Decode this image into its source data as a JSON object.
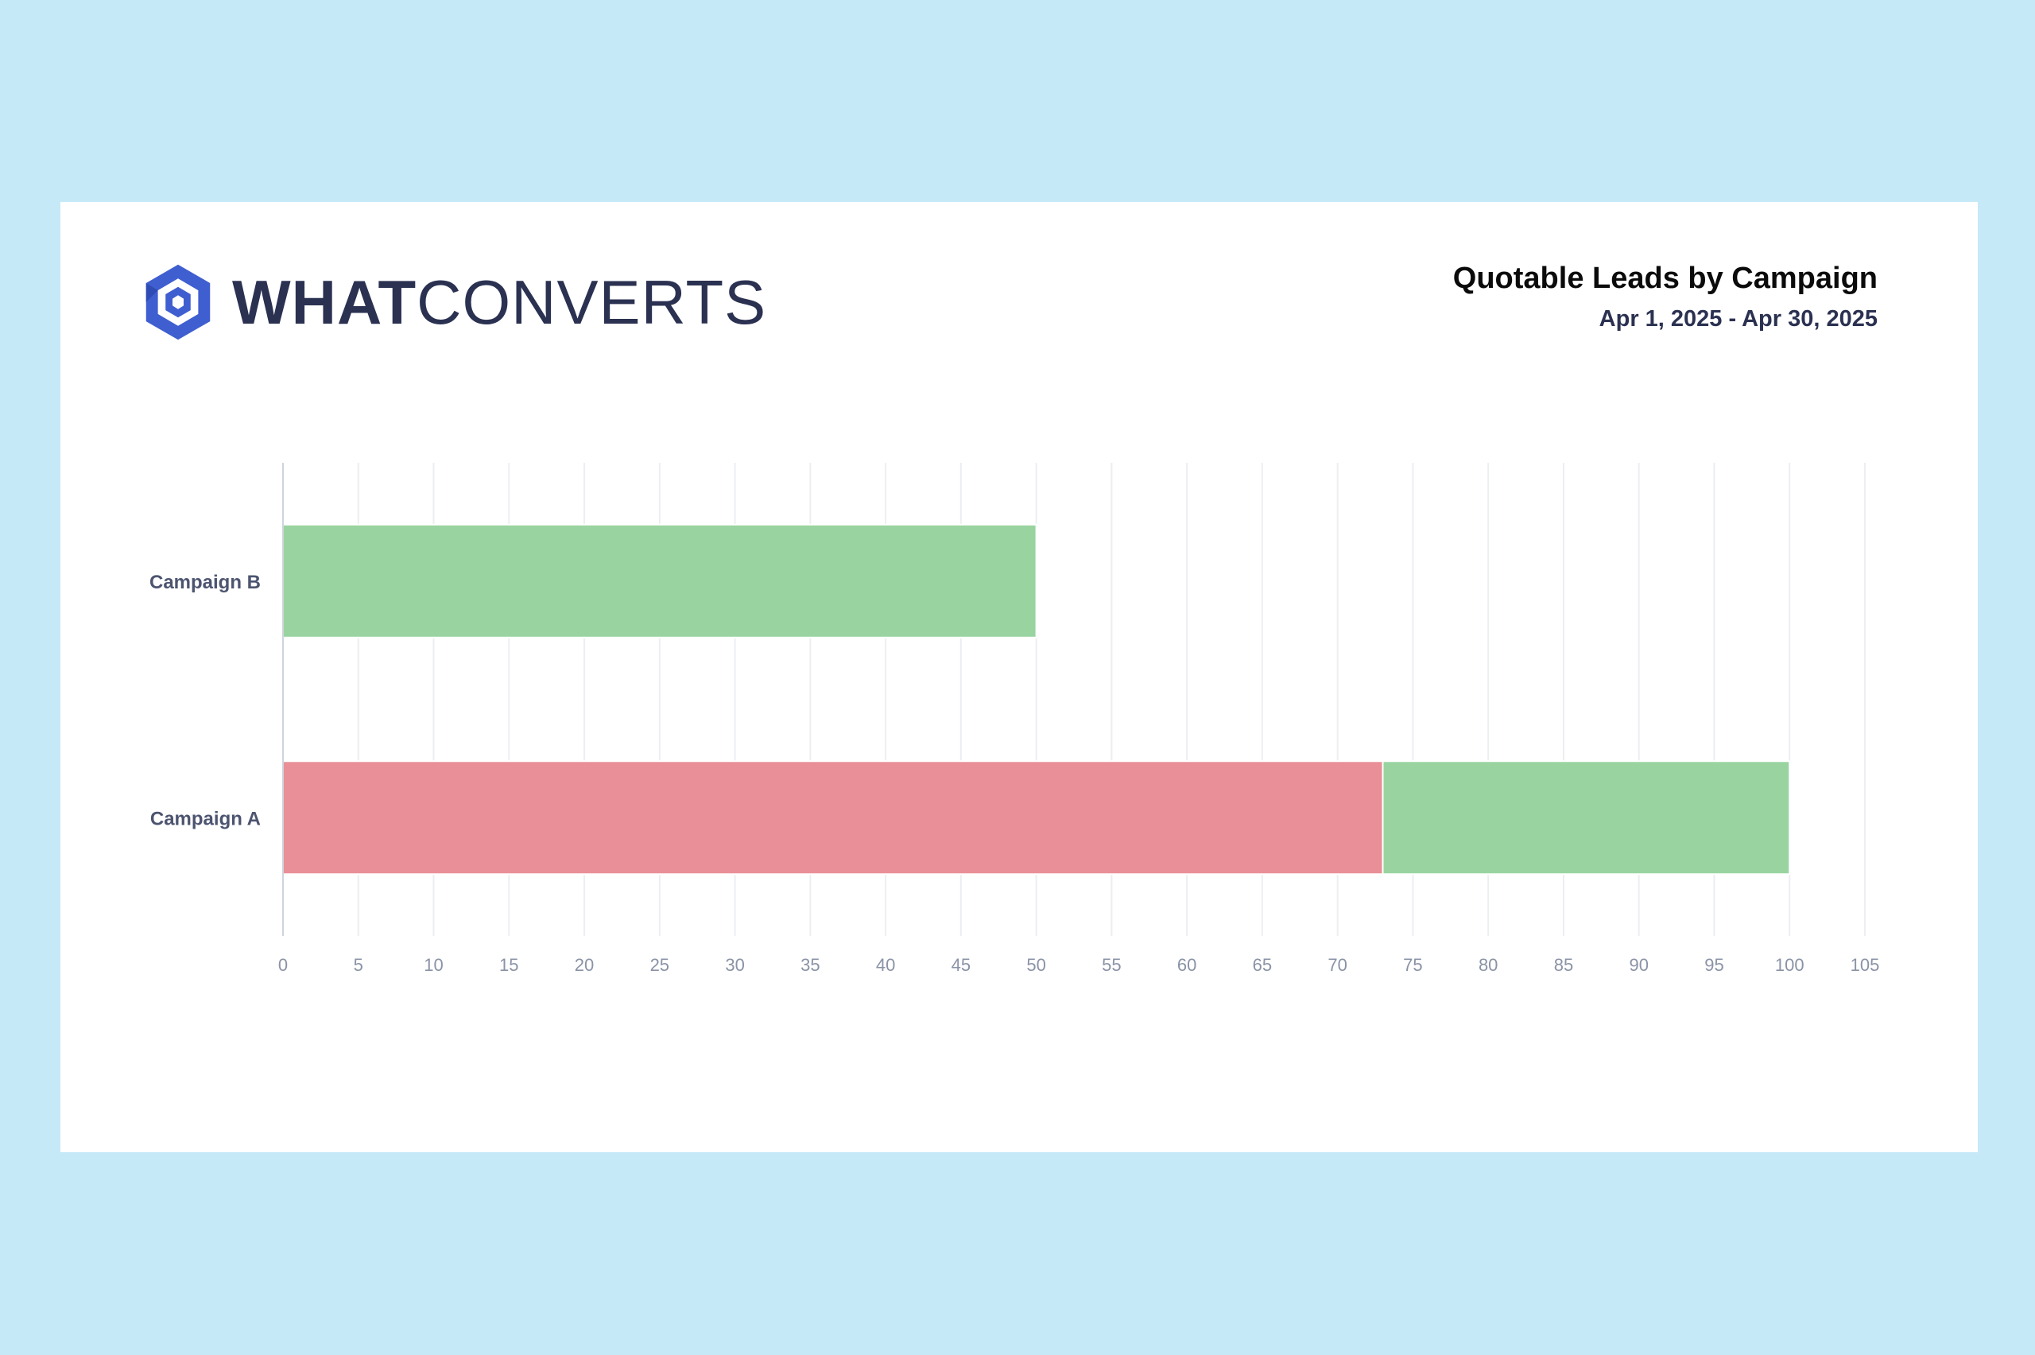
{
  "brand": {
    "logo_bold": "WHAT",
    "logo_light": "CONVERTS",
    "logo_icon": "hexagon-logo-icon",
    "accent": "#3f5fd0"
  },
  "header": {
    "title": "Quotable Leads by Campaign",
    "subtitle": "Apr 1, 2025 - Apr 30, 2025"
  },
  "chart_data": {
    "type": "bar",
    "orientation": "horizontal",
    "stacked": true,
    "title": "Quotable Leads by Campaign",
    "subtitle": "Apr 1, 2025 - Apr 30, 2025",
    "categories": [
      "Campaign B",
      "Campaign A"
    ],
    "series": [
      {
        "values": [
          0,
          73
        ],
        "color": "#e98f97"
      },
      {
        "values": [
          50,
          27
        ],
        "color": "#99d4a0"
      }
    ],
    "xlim": [
      0,
      105
    ],
    "xticks": [
      0,
      5,
      10,
      15,
      20,
      25,
      30,
      35,
      40,
      45,
      50,
      55,
      60,
      65,
      70,
      75,
      80,
      85,
      90,
      95,
      100,
      105
    ],
    "grid": true,
    "legend": "none",
    "colors": {
      "grid": "#eceef2",
      "axis": "#cfd4dd",
      "tick_text": "#8a93a6",
      "category_text": "#4c5470"
    }
  }
}
